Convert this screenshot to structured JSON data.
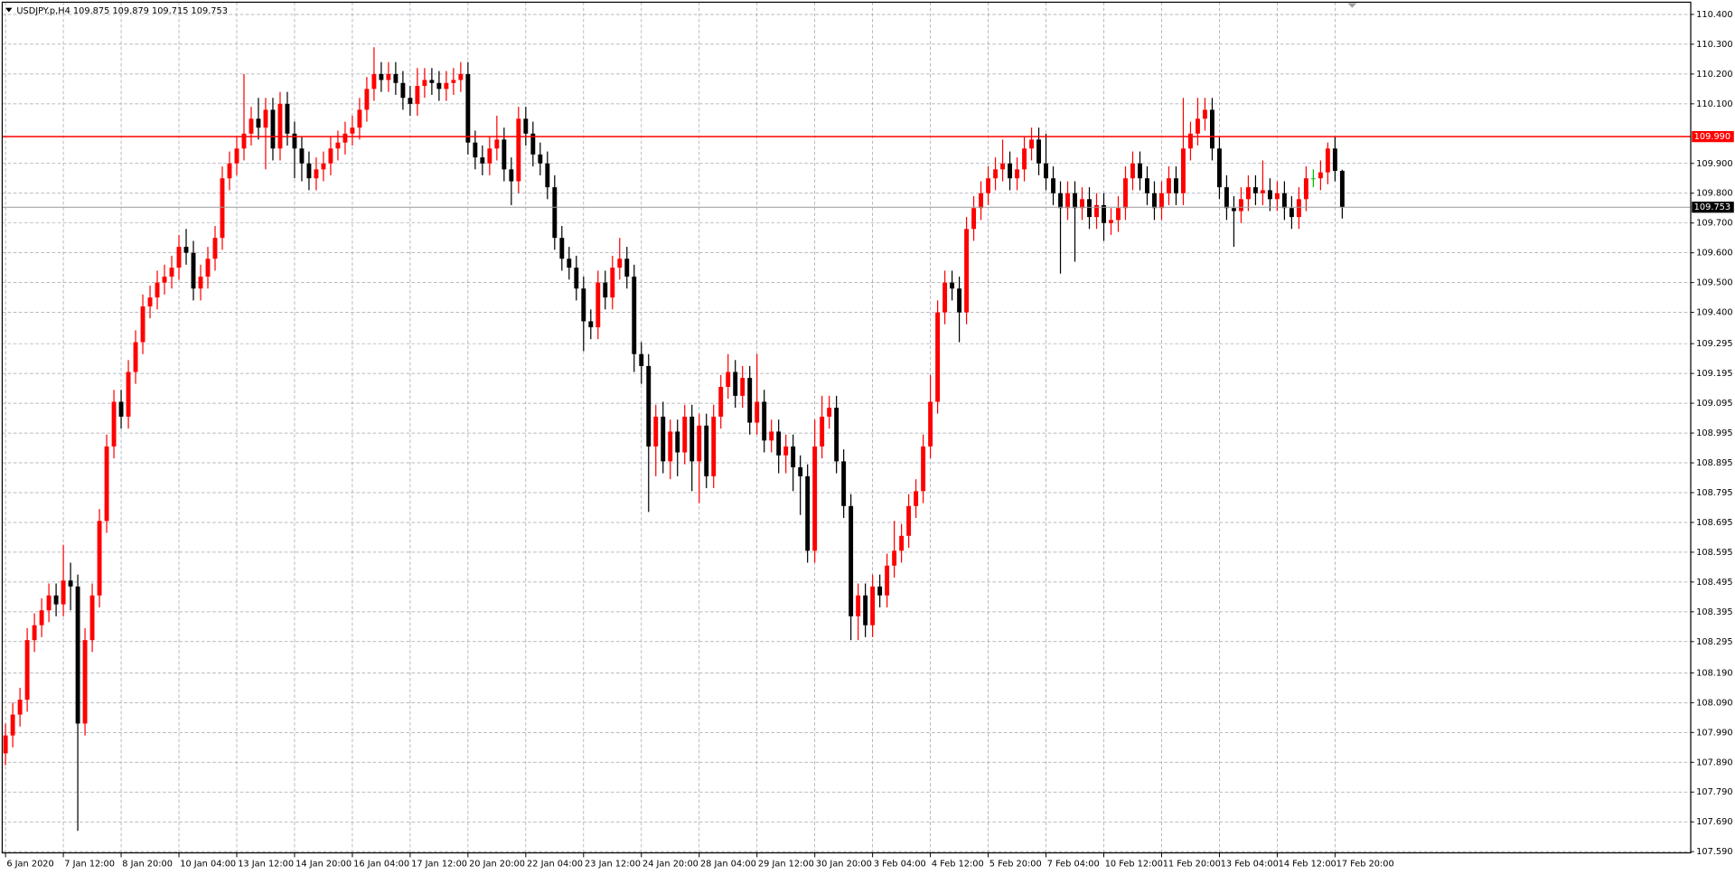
{
  "chart_data": {
    "type": "candlestick",
    "title": "USDJPY.p,H4  109.875 109.879 109.715 109.753",
    "open": [
      107.92,
      107.98,
      108.05,
      108.1,
      108.3,
      108.35,
      108.4,
      108.45,
      108.42,
      108.5,
      108.48,
      108.02,
      108.3,
      108.45,
      108.7,
      108.95,
      109.1,
      109.05,
      109.2,
      109.3,
      109.42,
      109.45,
      109.5,
      109.52,
      109.55,
      109.62,
      109.6,
      109.48,
      109.52,
      109.58,
      109.65,
      109.85,
      109.9,
      109.95,
      110.0,
      110.05,
      110.02,
      110.08,
      109.95,
      110.1,
      110.0,
      109.95,
      109.9,
      109.85,
      109.88,
      109.9,
      109.95,
      109.97,
      110.0,
      110.02,
      110.08,
      110.15,
      110.2,
      110.18,
      110.2,
      110.17,
      110.12,
      110.1,
      110.16,
      110.18,
      110.17,
      110.15,
      110.17,
      110.18,
      110.2,
      109.97,
      109.92,
      109.9,
      109.95,
      109.98,
      109.88,
      109.84,
      110.05,
      110.0,
      109.93,
      109.9,
      109.82,
      109.65,
      109.58,
      109.55,
      109.48,
      109.37,
      109.35,
      109.5,
      109.45,
      109.55,
      109.58,
      109.52,
      109.26,
      109.22,
      108.95,
      109.05,
      108.9,
      109.0,
      108.93,
      109.05,
      108.9,
      109.02,
      108.85,
      109.05,
      109.15,
      109.2,
      109.12,
      109.18,
      109.03,
      109.1,
      108.97,
      109.0,
      108.92,
      108.95,
      108.88,
      108.85,
      108.6,
      108.95,
      109.05,
      109.08,
      108.9,
      108.75,
      108.38,
      108.45,
      108.35,
      108.48,
      108.45,
      108.55,
      108.6,
      108.65,
      108.75,
      108.8,
      108.95,
      109.1,
      109.4,
      109.5,
      109.48,
      109.4,
      109.68,
      109.75,
      109.8,
      109.85,
      109.88,
      109.9,
      109.85,
      109.88,
      109.95,
      109.98,
      109.9,
      109.85,
      109.8,
      109.75,
      109.8,
      109.75,
      109.78,
      109.72,
      109.76,
      109.7,
      109.71,
      109.75,
      109.85,
      109.9,
      109.85,
      109.8,
      109.75,
      109.8,
      109.85,
      109.8,
      109.95,
      110.0,
      110.05,
      110.08,
      109.95,
      109.82,
      109.75,
      109.74,
      109.78,
      109.82,
      109.8,
      109.81,
      109.78,
      109.8,
      109.75,
      109.72,
      109.78,
      109.85,
      109.85,
      109.87,
      109.95,
      109.875
    ],
    "high": [
      108.02,
      108.09,
      108.14,
      108.34,
      108.39,
      108.44,
      108.49,
      108.49,
      108.62,
      108.56,
      108.52,
      108.34,
      108.49,
      108.74,
      108.99,
      109.14,
      109.14,
      109.24,
      109.34,
      109.46,
      109.49,
      109.54,
      109.56,
      109.59,
      109.66,
      109.68,
      109.64,
      109.56,
      109.62,
      109.69,
      109.89,
      109.94,
      109.99,
      110.2,
      110.09,
      110.12,
      110.12,
      110.12,
      110.14,
      110.14,
      110.04,
      109.99,
      109.94,
      109.92,
      109.94,
      109.99,
      110.01,
      110.04,
      110.06,
      110.12,
      110.19,
      110.29,
      110.24,
      110.24,
      110.24,
      110.21,
      110.16,
      110.22,
      110.22,
      110.22,
      110.21,
      110.21,
      110.22,
      110.24,
      110.24,
      110.01,
      109.96,
      109.99,
      110.06,
      110.02,
      109.92,
      110.09,
      110.09,
      110.04,
      109.97,
      109.94,
      109.86,
      109.69,
      109.62,
      109.59,
      109.52,
      109.41,
      109.54,
      109.54,
      109.59,
      109.65,
      109.62,
      109.56,
      109.3,
      109.26,
      109.09,
      109.1,
      109.04,
      109.04,
      109.09,
      109.09,
      109.06,
      109.06,
      109.09,
      109.19,
      109.26,
      109.24,
      109.22,
      109.22,
      109.26,
      109.14,
      109.04,
      109.04,
      108.99,
      108.99,
      108.92,
      108.89,
      109.04,
      109.12,
      109.12,
      109.12,
      108.94,
      108.79,
      108.49,
      108.49,
      108.52,
      108.52,
      108.59,
      108.7,
      108.69,
      108.79,
      108.84,
      108.99,
      109.19,
      109.44,
      109.54,
      109.54,
      109.52,
      109.72,
      109.79,
      109.84,
      109.89,
      109.92,
      109.98,
      109.94,
      109.92,
      109.99,
      110.02,
      110.02,
      110.0,
      109.89,
      109.84,
      109.84,
      109.84,
      109.82,
      109.82,
      109.8,
      109.8,
      109.75,
      109.79,
      109.89,
      109.94,
      109.94,
      109.89,
      109.84,
      109.84,
      109.89,
      109.89,
      110.12,
      110.04,
      110.12,
      110.12,
      110.12,
      109.99,
      109.86,
      109.79,
      109.82,
      109.86,
      109.86,
      109.91,
      109.85,
      109.84,
      109.84,
      109.79,
      109.82,
      109.89,
      109.88,
      109.91,
      109.97,
      109.99,
      109.879
    ],
    "low": [
      107.88,
      107.94,
      108.01,
      108.06,
      108.26,
      108.31,
      108.36,
      108.38,
      108.38,
      108.4,
      107.66,
      107.98,
      108.26,
      108.41,
      108.66,
      108.91,
      109.01,
      109.01,
      109.16,
      109.26,
      109.38,
      109.41,
      109.46,
      109.48,
      109.51,
      109.56,
      109.44,
      109.44,
      109.48,
      109.54,
      109.61,
      109.81,
      109.86,
      109.91,
      109.96,
      109.98,
      109.88,
      109.91,
      109.91,
      109.96,
      109.85,
      109.84,
      109.81,
      109.81,
      109.84,
      109.86,
      109.91,
      109.93,
      109.96,
      109.98,
      110.04,
      110.11,
      110.14,
      110.14,
      110.13,
      110.08,
      110.06,
      110.06,
      110.12,
      110.13,
      110.11,
      110.11,
      110.13,
      110.14,
      109.93,
      109.88,
      109.86,
      109.86,
      109.91,
      109.84,
      109.76,
      109.8,
      109.96,
      109.89,
      109.86,
      109.78,
      109.61,
      109.54,
      109.51,
      109.44,
      109.27,
      109.31,
      109.31,
      109.41,
      109.41,
      109.51,
      109.48,
      109.2,
      109.16,
      108.73,
      108.85,
      108.86,
      108.84,
      108.85,
      108.89,
      108.8,
      108.76,
      108.81,
      108.81,
      109.01,
      109.11,
      109.08,
      109.08,
      108.99,
      108.99,
      108.93,
      108.93,
      108.86,
      108.86,
      108.8,
      108.72,
      108.56,
      108.56,
      108.91,
      109.01,
      108.86,
      108.71,
      108.3,
      108.3,
      108.31,
      108.31,
      108.41,
      108.41,
      108.51,
      108.56,
      108.61,
      108.71,
      108.76,
      108.91,
      109.06,
      109.36,
      109.44,
      109.3,
      109.36,
      109.64,
      109.71,
      109.76,
      109.81,
      109.84,
      109.81,
      109.81,
      109.84,
      109.91,
      109.86,
      109.81,
      109.76,
      109.53,
      109.71,
      109.57,
      109.71,
      109.68,
      109.68,
      109.64,
      109.66,
      109.67,
      109.71,
      109.81,
      109.81,
      109.76,
      109.71,
      109.71,
      109.76,
      109.76,
      109.76,
      109.91,
      109.96,
      110.01,
      109.91,
      109.78,
      109.71,
      109.62,
      109.7,
      109.74,
      109.76,
      109.76,
      109.74,
      109.74,
      109.71,
      109.68,
      109.68,
      109.74,
      109.82,
      109.81,
      109.83,
      109.84,
      109.715
    ],
    "close": [
      107.98,
      108.05,
      108.1,
      108.3,
      108.35,
      108.4,
      108.45,
      108.42,
      108.5,
      108.48,
      108.02,
      108.3,
      108.45,
      108.7,
      108.95,
      109.1,
      109.05,
      109.2,
      109.3,
      109.42,
      109.45,
      109.5,
      109.52,
      109.55,
      109.62,
      109.6,
      109.48,
      109.52,
      109.58,
      109.65,
      109.85,
      109.9,
      109.95,
      110.0,
      110.05,
      110.02,
      110.08,
      109.95,
      110.1,
      110.0,
      109.95,
      109.9,
      109.85,
      109.88,
      109.9,
      109.95,
      109.97,
      110.0,
      110.02,
      110.08,
      110.15,
      110.2,
      110.18,
      110.2,
      110.17,
      110.12,
      110.1,
      110.16,
      110.18,
      110.17,
      110.15,
      110.17,
      110.18,
      110.2,
      109.97,
      109.92,
      109.9,
      109.95,
      109.98,
      109.88,
      109.84,
      110.05,
      110.0,
      109.93,
      109.9,
      109.82,
      109.65,
      109.58,
      109.55,
      109.48,
      109.37,
      109.35,
      109.5,
      109.45,
      109.55,
      109.58,
      109.52,
      109.26,
      109.22,
      108.95,
      109.05,
      108.9,
      109.0,
      108.93,
      109.05,
      108.9,
      109.02,
      108.85,
      109.05,
      109.15,
      109.2,
      109.12,
      109.18,
      109.03,
      109.1,
      108.97,
      109.0,
      108.92,
      108.95,
      108.88,
      108.85,
      108.6,
      108.95,
      109.05,
      109.08,
      108.9,
      108.75,
      108.38,
      108.45,
      108.35,
      108.48,
      108.45,
      108.55,
      108.6,
      108.65,
      108.75,
      108.8,
      108.95,
      109.1,
      109.4,
      109.5,
      109.48,
      109.4,
      109.68,
      109.75,
      109.8,
      109.85,
      109.88,
      109.9,
      109.85,
      109.88,
      109.95,
      109.98,
      109.9,
      109.85,
      109.8,
      109.75,
      109.8,
      109.75,
      109.78,
      109.72,
      109.76,
      109.7,
      109.71,
      109.75,
      109.85,
      109.9,
      109.85,
      109.8,
      109.75,
      109.8,
      109.85,
      109.8,
      109.95,
      110.0,
      110.05,
      110.08,
      109.95,
      109.82,
      109.75,
      109.74,
      109.78,
      109.82,
      109.8,
      109.81,
      109.78,
      109.8,
      109.75,
      109.72,
      109.78,
      109.85,
      109.85,
      109.87,
      109.95,
      109.875,
      109.753
    ],
    "up_color": "#ff0000",
    "down_color": "#000000",
    "doji_color": "#00c000",
    "xticks": [
      {
        "value": 0,
        "label": "6 Jan 2020"
      },
      {
        "value": 8,
        "label": "7 Jan 12:00"
      },
      {
        "value": 16,
        "label": "8 Jan 20:00"
      },
      {
        "value": 24,
        "label": "10 Jan 04:00"
      },
      {
        "value": 32,
        "label": "13 Jan 12:00"
      },
      {
        "value": 40,
        "label": "14 Jan 20:00"
      },
      {
        "value": 48,
        "label": "16 Jan 04:00"
      },
      {
        "value": 56,
        "label": "17 Jan 12:00"
      },
      {
        "value": 64,
        "label": "20 Jan 20:00"
      },
      {
        "value": 72,
        "label": "22 Jan 04:00"
      },
      {
        "value": 80,
        "label": "23 Jan 12:00"
      },
      {
        "value": 88,
        "label": "24 Jan 20:00"
      },
      {
        "value": 96,
        "label": "28 Jan 04:00"
      },
      {
        "value": 104,
        "label": "29 Jan 12:00"
      },
      {
        "value": 112,
        "label": "30 Jan 20:00"
      },
      {
        "value": 120,
        "label": "3 Feb 04:00"
      },
      {
        "value": 128,
        "label": "4 Feb 12:00"
      },
      {
        "value": 136,
        "label": "5 Feb 20:00"
      },
      {
        "value": 144,
        "label": "7 Feb 04:00"
      },
      {
        "value": 152,
        "label": "10 Feb 12:00"
      },
      {
        "value": 160,
        "label": "11 Feb 20:00"
      },
      {
        "value": 168,
        "label": "13 Feb 04:00"
      },
      {
        "value": 176,
        "label": "14 Feb 12:00"
      },
      {
        "value": 184,
        "label": "17 Feb 20:00"
      }
    ],
    "ylim": [
      107.586,
      110.441
    ],
    "yticks": [
      {
        "value": 110.4,
        "label": "110.400"
      },
      {
        "value": 110.3,
        "label": "110.300"
      },
      {
        "value": 110.2,
        "label": "110.200"
      },
      {
        "value": 110.1,
        "label": "110.100"
      },
      {
        "value": 109.9,
        "label": "109.900"
      },
      {
        "value": 109.8,
        "label": "109.800"
      },
      {
        "value": 109.7,
        "label": "109.700"
      },
      {
        "value": 109.6,
        "label": "109.600"
      },
      {
        "value": 109.5,
        "label": "109.500"
      },
      {
        "value": 109.4,
        "label": "109.400"
      },
      {
        "value": 109.295,
        "label": "109.295"
      },
      {
        "value": 109.195,
        "label": "109.195"
      },
      {
        "value": 109.095,
        "label": "109.095"
      },
      {
        "value": 108.995,
        "label": "108.995"
      },
      {
        "value": 108.895,
        "label": "108.895"
      },
      {
        "value": 108.795,
        "label": "108.795"
      },
      {
        "value": 108.695,
        "label": "108.695"
      },
      {
        "value": 108.595,
        "label": "108.595"
      },
      {
        "value": 108.495,
        "label": "108.495"
      },
      {
        "value": 108.395,
        "label": "108.395"
      },
      {
        "value": 108.295,
        "label": "108.295"
      },
      {
        "value": 108.19,
        "label": "108.190"
      },
      {
        "value": 108.09,
        "label": "108.090"
      },
      {
        "value": 107.99,
        "label": "107.990"
      },
      {
        "value": 107.89,
        "label": "107.890"
      },
      {
        "value": 107.79,
        "label": "107.790"
      },
      {
        "value": 107.69,
        "label": "107.690"
      },
      {
        "value": 107.59,
        "label": "107.590"
      }
    ],
    "grid": true,
    "hlines": [
      {
        "value": 109.99,
        "label": "109.990",
        "color": "#ff0000"
      },
      {
        "value": 109.753,
        "label": "109.753",
        "color": "#9a9a9a"
      }
    ]
  }
}
